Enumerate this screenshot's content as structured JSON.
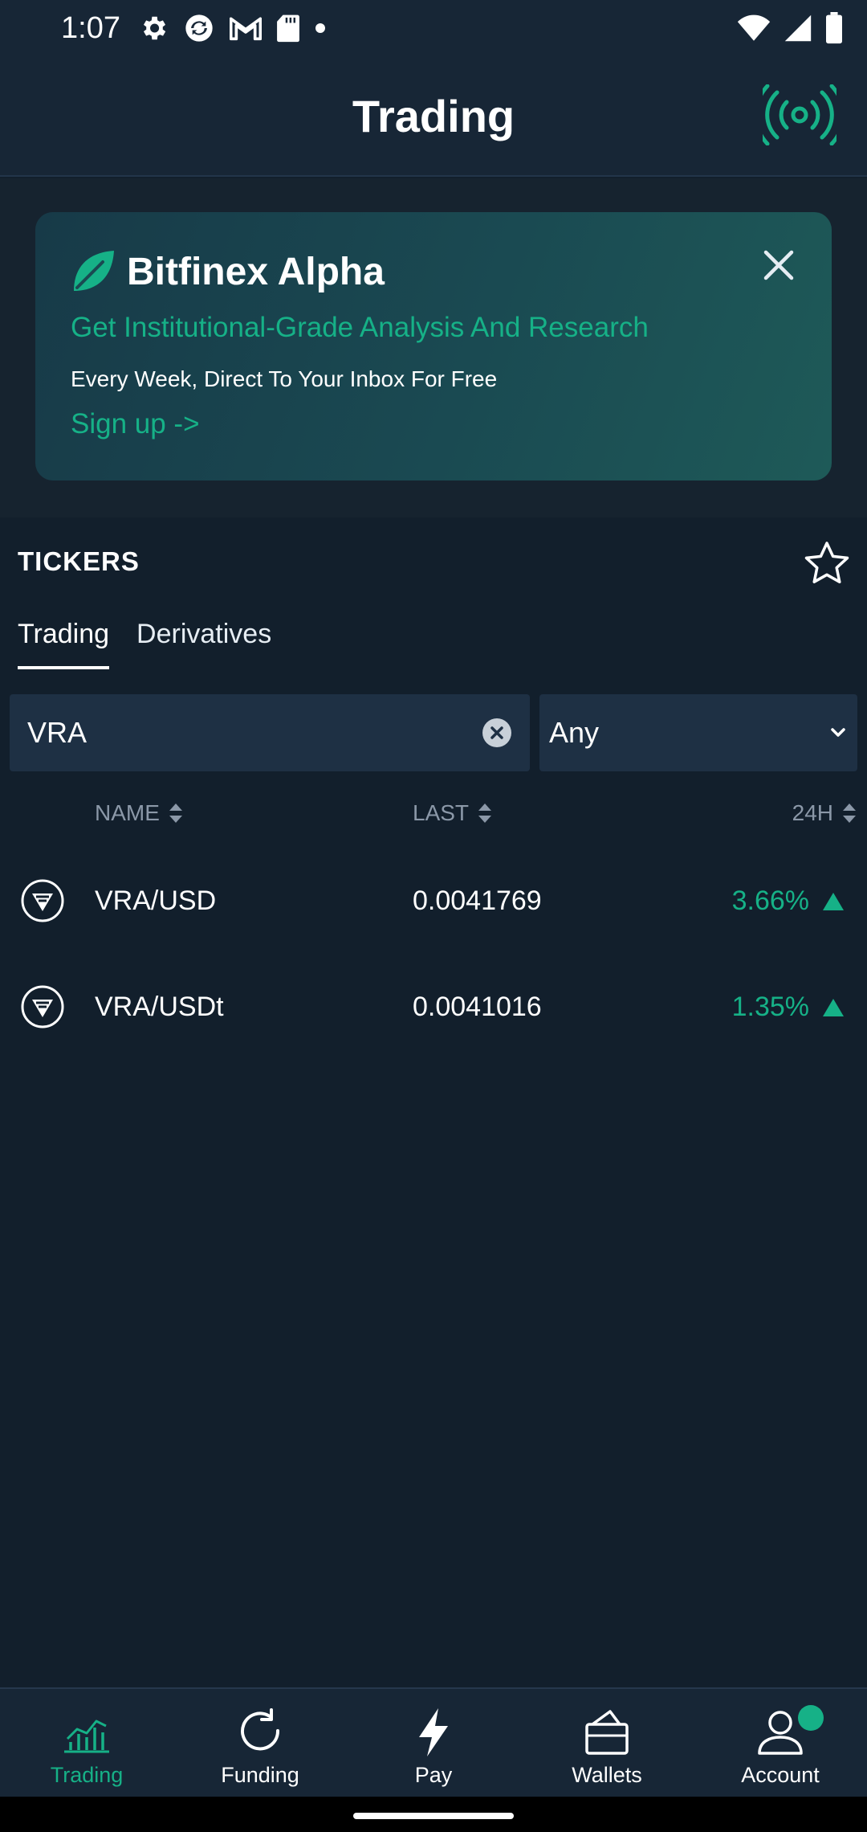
{
  "status_bar": {
    "time": "1:07"
  },
  "header": {
    "title": "Trading"
  },
  "promo": {
    "brand": "Bitfinex Alpha",
    "headline": "Get Institutional-Grade Analysis And Research",
    "subline": "Every Week, Direct To Your Inbox For Free",
    "cta": "Sign up ->"
  },
  "tickers": {
    "title": "TICKERS",
    "tabs": [
      {
        "label": "Trading",
        "active": true
      },
      {
        "label": "Derivatives",
        "active": false
      }
    ],
    "search": {
      "value": "VRA"
    },
    "filter": {
      "selected": "Any"
    },
    "columns": {
      "name": "NAME",
      "last": "LAST",
      "change": "24H"
    },
    "rows": [
      {
        "name": "VRA/USD",
        "last": "0.0041769",
        "change": "3.66%",
        "direction": "up"
      },
      {
        "name": "VRA/USDt",
        "last": "0.0041016",
        "change": "1.35%",
        "direction": "up"
      }
    ]
  },
  "bottom_nav": {
    "items": [
      {
        "label": "Trading",
        "icon": "chart-icon",
        "active": true
      },
      {
        "label": "Funding",
        "icon": "refresh-icon",
        "active": false
      },
      {
        "label": "Pay",
        "icon": "bolt-icon",
        "active": false
      },
      {
        "label": "Wallets",
        "icon": "wallet-icon",
        "active": false
      },
      {
        "label": "Account",
        "icon": "user-icon",
        "active": false
      }
    ]
  },
  "colors": {
    "background": "#121f2c",
    "panel": "#172636",
    "accent": "#16b187",
    "input": "#1e3044",
    "muted": "#8b98a8"
  }
}
